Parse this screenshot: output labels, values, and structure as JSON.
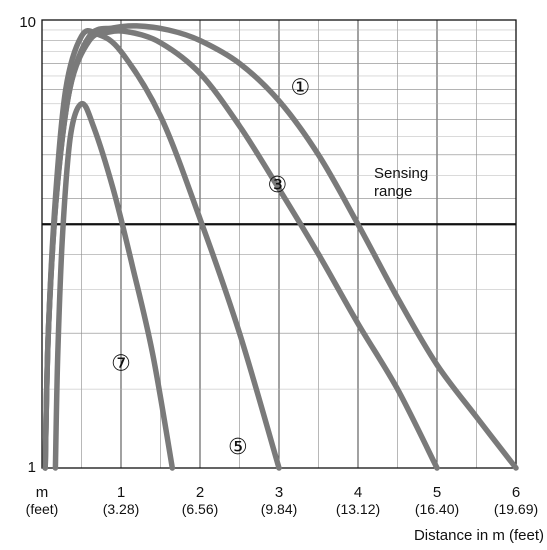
{
  "chart_data": {
    "type": "line",
    "title": "",
    "xlabel": "Distance in m (feet)",
    "ylabel": "",
    "y_scale": "log",
    "ylim": [
      1,
      10
    ],
    "xlim": [
      0,
      6
    ],
    "grid": true,
    "y_tick_labels": [
      "1",
      "10"
    ],
    "x_ticks": [
      {
        "value": 0,
        "label": "m",
        "sub": "(feet)"
      },
      {
        "value": 1,
        "label": "1",
        "sub": "(3.28)"
      },
      {
        "value": 2,
        "label": "2",
        "sub": "(6.56)"
      },
      {
        "value": 3,
        "label": "3",
        "sub": "(9.84)"
      },
      {
        "value": 4,
        "label": "4",
        "sub": "(13.12)"
      },
      {
        "value": 5,
        "label": "5",
        "sub": "(16.40)"
      },
      {
        "value": 6,
        "label": "6",
        "sub": "(19.69)"
      }
    ],
    "reference_line": {
      "y": 3.5,
      "label": [
        "Sensing",
        "range"
      ]
    },
    "series": [
      {
        "name": "①",
        "points": [
          [
            0.04,
            1
          ],
          [
            0.08,
            2
          ],
          [
            0.18,
            4
          ],
          [
            0.35,
            7
          ],
          [
            0.6,
            9.2
          ],
          [
            0.9,
            9.6
          ],
          [
            1.2,
            9.7
          ],
          [
            1.6,
            9.5
          ],
          [
            2.0,
            9.0
          ],
          [
            2.5,
            8.0
          ],
          [
            3.0,
            6.6
          ],
          [
            3.5,
            5.0
          ],
          [
            4.0,
            3.5
          ],
          [
            4.5,
            2.4
          ],
          [
            5.0,
            1.7
          ],
          [
            5.5,
            1.3
          ],
          [
            6.0,
            1.0
          ]
        ]
      },
      {
        "name": "③",
        "points": [
          [
            0.04,
            1
          ],
          [
            0.08,
            2
          ],
          [
            0.18,
            4
          ],
          [
            0.35,
            7
          ],
          [
            0.6,
            9.0
          ],
          [
            0.85,
            9.4
          ],
          [
            1.1,
            9.4
          ],
          [
            1.5,
            8.9
          ],
          [
            2.0,
            7.6
          ],
          [
            2.5,
            5.8
          ],
          [
            3.0,
            4.2
          ],
          [
            3.5,
            3.0
          ],
          [
            4.0,
            2.1
          ],
          [
            4.5,
            1.5
          ],
          [
            5.0,
            1.0
          ]
        ]
      },
      {
        "name": "⑤",
        "points": [
          [
            0.04,
            1
          ],
          [
            0.08,
            2
          ],
          [
            0.17,
            4
          ],
          [
            0.3,
            7
          ],
          [
            0.5,
            9.2
          ],
          [
            0.7,
            9.3
          ],
          [
            1.0,
            8.5
          ],
          [
            1.5,
            6.1
          ],
          [
            2.0,
            3.6
          ],
          [
            2.5,
            2.0
          ],
          [
            3.0,
            1.0
          ]
        ]
      },
      {
        "name": "⑦",
        "points": [
          [
            0.17,
            1
          ],
          [
            0.2,
            1.8
          ],
          [
            0.26,
            3.3
          ],
          [
            0.36,
            5.5
          ],
          [
            0.5,
            6.5
          ],
          [
            0.65,
            5.8
          ],
          [
            0.9,
            4.2
          ],
          [
            1.15,
            2.8
          ],
          [
            1.4,
            1.8
          ],
          [
            1.65,
            1.0
          ]
        ]
      }
    ],
    "series_label_positions": [
      {
        "name": "①",
        "x": 3.27,
        "y": 7.1
      },
      {
        "name": "③",
        "x": 2.98,
        "y": 4.3
      },
      {
        "name": "⑤",
        "x": 2.48,
        "y": 1.12
      },
      {
        "name": "⑦",
        "x": 1.0,
        "y": 1.72
      }
    ]
  }
}
